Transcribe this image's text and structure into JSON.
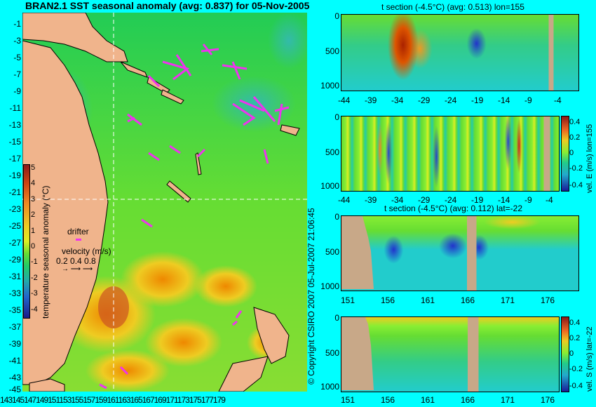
{
  "main_title": "BRAN2.1 SST seasonal anomaly (avg: 0.837) for 05-Nov-2005",
  "map": {
    "lat_ticks": [
      "-1",
      "-3",
      "-5",
      "-7",
      "-9",
      "-11",
      "-13",
      "-15",
      "-17",
      "-19",
      "-21",
      "-23",
      "-25",
      "-27",
      "-29",
      "-31",
      "-33",
      "-35",
      "-37",
      "-39",
      "-41",
      "-43",
      "-45"
    ],
    "lon_ticks": [
      "143",
      "145",
      "147",
      "149",
      "151",
      "153",
      "155",
      "157",
      "159",
      "161",
      "163",
      "165",
      "167",
      "169",
      "171",
      "173",
      "175",
      "177",
      "179"
    ],
    "colorbar_label": "temperature seasonal anomaly (°C)",
    "colorbar_ticks": [
      "5",
      "4",
      "3",
      "2",
      "1",
      "0",
      "-1",
      "-2",
      "-3",
      "-4"
    ],
    "drifter_label": "drifter",
    "velocity_label": "velocity (m/s)",
    "velocity_values": "0.2 0.4 0.8"
  },
  "copyright": "© Copyright CSIRO 2007  05-Jul-2007 21:06:45",
  "panels": {
    "p1": {
      "title": "t section (-4.5°C) (avg: 0.513) lon=155",
      "y_ticks": [
        "0",
        "500",
        "1000"
      ],
      "x_ticks": [
        "-44",
        "-39",
        "-34",
        "-29",
        "-24",
        "-19",
        "-14",
        "-9",
        "-4"
      ]
    },
    "p2": {
      "y_ticks": [
        "0",
        "500",
        "1000"
      ],
      "x_ticks": [
        "-44",
        "-39",
        "-34",
        "-29",
        "-24",
        "-19",
        "-14",
        "-9",
        "-4"
      ],
      "cb_label": "vel. E (m/s) lon=155",
      "cb_ticks": [
        "0.4",
        "0.2",
        "0",
        "-0.2",
        "-0.4"
      ]
    },
    "p3": {
      "title": "t section (-4.5°C) (avg: 0.112) lat=-22",
      "y_ticks": [
        "0",
        "500",
        "1000"
      ],
      "x_ticks": [
        "151",
        "156",
        "161",
        "166",
        "171",
        "176"
      ]
    },
    "p4": {
      "y_ticks": [
        "0",
        "500",
        "1000"
      ],
      "x_ticks": [
        "151",
        "156",
        "161",
        "166",
        "171",
        "176"
      ],
      "cb_label": "vel. S (m/s) lat=-22",
      "cb_ticks": [
        "0.4",
        "0.2",
        "0",
        "-0.2",
        "-0.4"
      ]
    }
  }
}
